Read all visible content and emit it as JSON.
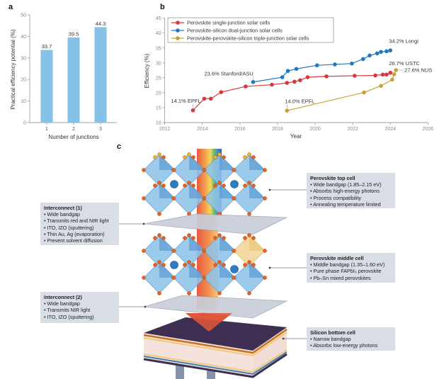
{
  "panels": {
    "a": "a",
    "b": "b",
    "c": "c"
  },
  "chart_data": [
    {
      "type": "bar",
      "categories": [
        "1",
        "2",
        "3"
      ],
      "values": [
        33.7,
        39.5,
        44.3
      ],
      "data_labels": [
        "33.7",
        "39.5",
        "44.3"
      ],
      "xlabel": "Number of junctions",
      "ylabel": "Practical efficiency potential (%)",
      "ylim": [
        0,
        50
      ],
      "yticks": [
        "0",
        "10",
        "20",
        "30",
        "40",
        "50"
      ],
      "color": "#86c1e8",
      "grid": false
    },
    {
      "type": "line",
      "xlabel": "Year",
      "ylabel": "Efficiency (%)",
      "xlim": [
        2012,
        2026
      ],
      "ylim": [
        10,
        45
      ],
      "xticks": [
        "2012",
        "2014",
        "2016",
        "2018",
        "2020",
        "2022",
        "2024",
        "2026"
      ],
      "yticks": [
        "10",
        "15",
        "20",
        "25",
        "30",
        "35",
        "40",
        "45"
      ],
      "legend": "top-left",
      "grid": false,
      "series": [
        {
          "name": "Perovskite single-junction solar cells",
          "color": "#d9363e",
          "x": [
            2013.5,
            2014.1,
            2014.45,
            2015.0,
            2016.3,
            2017.7,
            2018.5,
            2018.9,
            2019.2,
            2019.6,
            2020.6,
            2022.1,
            2023.2,
            2023.6,
            2023.8,
            2024.0
          ],
          "y": [
            14.1,
            18.0,
            18.0,
            20.2,
            22.1,
            22.7,
            23.3,
            23.7,
            24.2,
            25.2,
            25.5,
            25.7,
            25.8,
            26.1,
            26.1,
            26.7
          ]
        },
        {
          "name": "Perovskite-silicon dual-junction solar cells",
          "color": "#1f78c1",
          "x": [
            2016.7,
            2018.25,
            2018.55,
            2019.0,
            2020.1,
            2021.05,
            2021.95,
            2022.55,
            2022.9,
            2023.3,
            2023.5,
            2023.8,
            2024.0
          ],
          "y": [
            23.6,
            25.2,
            27.3,
            28.0,
            29.2,
            29.5,
            29.8,
            31.3,
            32.5,
            33.2,
            33.7,
            33.9,
            34.2
          ]
        },
        {
          "name": "Perovskite-perovskite-silicon triple-junction solar cells",
          "color": "#c9a136",
          "x": [
            2018.5,
            2022.6,
            2023.5,
            2024.1,
            2024.2,
            2024.3
          ],
          "y": [
            14.0,
            20.1,
            22.3,
            24.4,
            26.2,
            27.6
          ]
        }
      ],
      "annotations": [
        {
          "text": "14.1% EPFL",
          "x": 2013.5,
          "y": 14.1
        },
        {
          "text": "23.6% Stanford/ASU",
          "x": 2016.7,
          "y": 23.6
        },
        {
          "text": "14.0% EPFL",
          "x": 2018.5,
          "y": 14.0
        },
        {
          "text": "34.2% Longi",
          "x": 2024.0,
          "y": 34.2
        },
        {
          "text": "26.7% USTC",
          "x": 2024.0,
          "y": 26.7
        },
        {
          "text": "27.6% NUS",
          "x": 2024.3,
          "y": 27.6
        }
      ]
    }
  ],
  "diagram": {
    "interconnect1": {
      "title": "Interconnect (1)",
      "items": [
        "Wide bandgap",
        "Transmits red and NIR light",
        "ITO, IZO (sputtering)",
        "Thin Au, Ag (evaporation)",
        "Prevent solvent diffusion"
      ]
    },
    "interconnect2": {
      "title": "Interconnect (2)",
      "items": [
        "Wide bandgap",
        "Transmits NIR light",
        "ITO, IZO (sputtering)"
      ]
    },
    "top_cell": {
      "title": "Perovskite top cell",
      "items": [
        "Wide bandgap (1.85–2.15 eV)",
        "Absorbs high-energy photons",
        "Process compatibility",
        "Annealing temperature limited"
      ]
    },
    "middle_cell": {
      "title": "Perovskite middle cell",
      "items": [
        "Middle bandgap (1.35–1.60 eV)",
        "Pure phase FAPbI₃ perovskite",
        "Pb–Sn mixed perovskites"
      ]
    },
    "bottom_cell": {
      "title": "Silicon bottom cell",
      "items": [
        "Narrow bandgap",
        "Absorbs low-energy photons"
      ]
    }
  }
}
